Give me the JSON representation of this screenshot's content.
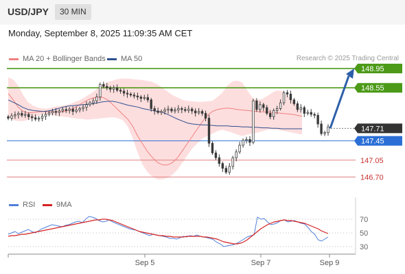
{
  "header": {
    "symbol": "USD/JPY",
    "interval": "30 MIN",
    "datetime": "Monday, September 8, 2025 11:09:35 AM CET"
  },
  "legend": {
    "bollinger": {
      "label": "MA 20 + Bollinger Bands",
      "color": "#f08080"
    },
    "ma50": {
      "label": "MA 50",
      "color": "#2f4f8f"
    },
    "rsi": {
      "label": "RSI",
      "color": "#4f7fd8"
    },
    "rsi_ma": {
      "label": "9MA",
      "color": "#d42020"
    }
  },
  "credit": "Research © 2025 Trading Central",
  "colors": {
    "resistance": "#4c9a18",
    "support": "#2b6fd6",
    "weak_support": "#e08080",
    "current": "#333333",
    "candle": "#3a3a3a",
    "bands_fill": "#fddada",
    "arrow": "#2d5fa8"
  },
  "chart_data": [
    {
      "type": "candlestick",
      "title": "USD/JPY",
      "ylim": [
        146.45,
        149.05
      ],
      "x_ticks": [
        "Sep 5",
        "Sep 7",
        "Sep 9"
      ],
      "current_price": 147.71,
      "levels": [
        {
          "value": 148.95,
          "label": "148.95",
          "kind": "resistance"
        },
        {
          "value": 148.55,
          "label": "148.55",
          "kind": "resistance"
        },
        {
          "value": 147.71,
          "label": "147.71",
          "kind": "current"
        },
        {
          "value": 147.45,
          "label": "147.45",
          "kind": "support"
        },
        {
          "value": 147.05,
          "label": "147.05",
          "kind": "weak_support"
        },
        {
          "value": 146.7,
          "label": "146.70",
          "kind": "weak_support"
        }
      ],
      "projection": {
        "from": 147.71,
        "to": 148.95
      },
      "close": [
        147.92,
        147.97,
        147.99,
        148.02,
        147.98,
        148.0,
        147.95,
        147.93,
        147.9,
        147.92,
        147.96,
        148.0,
        148.03,
        148.06,
        148.04,
        148.07,
        148.1,
        148.08,
        148.11,
        148.06,
        148.09,
        148.12,
        148.15,
        148.2,
        148.24,
        148.28,
        148.36,
        148.62,
        148.58,
        148.55,
        148.52,
        148.55,
        148.5,
        148.48,
        148.44,
        148.42,
        148.4,
        148.38,
        148.36,
        148.33,
        148.35,
        148.3,
        148.12,
        148.07,
        148.04,
        148.06,
        148.09,
        148.11,
        148.07,
        148.09,
        148.12,
        148.1,
        148.08,
        148.11,
        148.07,
        148.03,
        148.06,
        148.02,
        147.92,
        147.4,
        147.2,
        147.1,
        146.98,
        146.88,
        146.8,
        146.92,
        147.1,
        147.22,
        147.36,
        147.46,
        147.48,
        147.42,
        148.28,
        148.1,
        148.2,
        148.14,
        148.02,
        147.95,
        148.08,
        148.12,
        148.24,
        148.45,
        148.42,
        148.3,
        148.22,
        148.1,
        148.14,
        148.02,
        148.04,
        148.0,
        147.98,
        147.8,
        147.6,
        147.62,
        147.74
      ],
      "bollinger_upper": [
        148.77,
        148.72,
        148.6,
        148.4,
        148.25,
        148.18,
        148.14,
        148.12,
        148.12,
        148.15,
        148.17,
        148.18,
        148.2,
        148.24,
        148.28,
        148.33,
        148.4,
        148.46,
        148.55,
        148.62,
        148.67,
        148.7,
        148.73,
        148.74,
        148.74,
        148.73,
        148.72,
        148.71,
        148.69,
        148.67,
        148.62,
        148.55,
        148.47,
        148.4,
        148.35,
        148.3,
        148.28,
        148.27,
        148.26,
        148.26,
        148.27,
        148.28,
        148.36,
        148.45,
        148.6,
        148.68,
        148.7,
        148.66,
        148.5,
        148.35,
        148.3,
        148.32,
        148.38,
        148.45,
        148.5,
        148.48,
        148.4,
        148.3,
        148.18,
        148.02
      ],
      "bollinger_lower": [
        147.96,
        147.88,
        147.86,
        147.86,
        147.88,
        147.92,
        147.96,
        148.0,
        148.0,
        147.98,
        147.96,
        147.95,
        147.94,
        147.92,
        147.91,
        147.9,
        147.89,
        147.9,
        147.91,
        147.92,
        147.93,
        147.94,
        147.92,
        147.88,
        147.75,
        147.5,
        147.2,
        146.95,
        146.8,
        146.7,
        146.65,
        146.65,
        146.68,
        146.75,
        146.85,
        147.0,
        147.15,
        147.3,
        147.4,
        147.5,
        147.55,
        147.6,
        147.65,
        147.68,
        147.65,
        147.62,
        147.58,
        147.55,
        147.58,
        147.6,
        147.62,
        147.65,
        147.68,
        147.69,
        147.68,
        147.66,
        147.64,
        147.62,
        147.6,
        147.58
      ],
      "ma20": [
        148.43,
        148.3,
        148.15,
        148.06,
        148.03,
        148.04,
        148.05,
        148.06,
        148.06,
        148.05,
        148.05,
        148.06,
        148.08,
        148.12,
        148.18,
        148.24,
        148.3,
        148.34,
        148.36,
        148.35,
        148.3,
        148.2,
        148.1,
        148.0,
        147.9,
        147.75,
        147.55,
        147.38,
        147.22,
        147.1,
        147.0,
        146.95,
        146.95,
        147.0,
        147.1,
        147.25,
        147.4,
        147.55,
        147.7,
        147.85,
        147.98,
        148.06,
        148.1,
        148.12,
        148.13,
        148.12,
        148.1,
        148.09,
        148.08,
        148.07,
        148.06,
        148.05,
        148.05,
        148.04,
        148.03,
        148.02,
        148.01,
        148.0,
        147.98,
        147.96
      ],
      "ma50": [
        148.3,
        148.25,
        148.2,
        148.14,
        148.1,
        148.08,
        148.07,
        148.06,
        148.07,
        148.09,
        148.12,
        148.15,
        148.17,
        148.18,
        148.19,
        148.2,
        148.21,
        148.22,
        148.24,
        148.26,
        148.27,
        148.27,
        148.25,
        148.22,
        148.19,
        148.17,
        148.15,
        148.12,
        148.1,
        148.08,
        148.06,
        148.04,
        148.0,
        147.95,
        147.9,
        147.86,
        147.82,
        147.8,
        147.79,
        147.78,
        147.78,
        147.77,
        147.76,
        147.76,
        147.76,
        147.75,
        147.75,
        147.74,
        147.74,
        147.73,
        147.73,
        147.72,
        147.72,
        147.71,
        147.71,
        147.7,
        147.7,
        147.7,
        147.7,
        147.7
      ]
    },
    {
      "type": "line",
      "title": "RSI",
      "ylim": [
        20,
        80
      ],
      "yticks": [
        30,
        50,
        70
      ],
      "series": [
        {
          "name": "RSI",
          "values": [
            48,
            50,
            52,
            49,
            51,
            53,
            55,
            52,
            50,
            53,
            56,
            58,
            60,
            62,
            61,
            60,
            59,
            61,
            62,
            64,
            66,
            67,
            65,
            70,
            74,
            73,
            71,
            68,
            66,
            67,
            69,
            66,
            64,
            62,
            60,
            58,
            56,
            55,
            54,
            52,
            50,
            48,
            46,
            48,
            47,
            46,
            45,
            44,
            42,
            42,
            41,
            43,
            45,
            44,
            46,
            45,
            47,
            45,
            44,
            43,
            42,
            40,
            36,
            34,
            30,
            31,
            32,
            33,
            35,
            38,
            41,
            44,
            46,
            47,
            73,
            70,
            71,
            66,
            62,
            63,
            65,
            68,
            69,
            66,
            67,
            68,
            66,
            64,
            63,
            58,
            52,
            48,
            40,
            38,
            41,
            44
          ]
        },
        {
          "name": "9MA",
          "values": [
            45,
            46,
            46,
            47,
            48,
            48,
            49,
            50,
            51,
            52,
            53,
            54,
            55,
            56,
            57,
            58,
            59,
            60,
            61,
            62,
            63,
            64,
            65,
            66,
            67,
            68,
            69,
            69,
            70,
            70,
            69,
            68,
            66,
            64,
            62,
            60,
            58,
            56,
            54,
            52,
            51,
            50,
            49,
            48,
            47,
            46,
            46,
            45,
            45,
            44,
            44,
            44,
            44,
            45,
            45,
            45,
            45,
            45,
            44,
            44,
            43,
            42,
            41,
            39,
            37,
            36,
            35,
            34,
            34,
            35,
            37,
            40,
            44,
            48,
            52,
            56,
            59,
            62,
            64,
            66,
            67,
            68,
            69,
            68,
            68,
            67,
            66,
            65,
            64,
            62,
            60,
            58,
            56,
            53,
            51,
            49
          ]
        }
      ]
    }
  ]
}
